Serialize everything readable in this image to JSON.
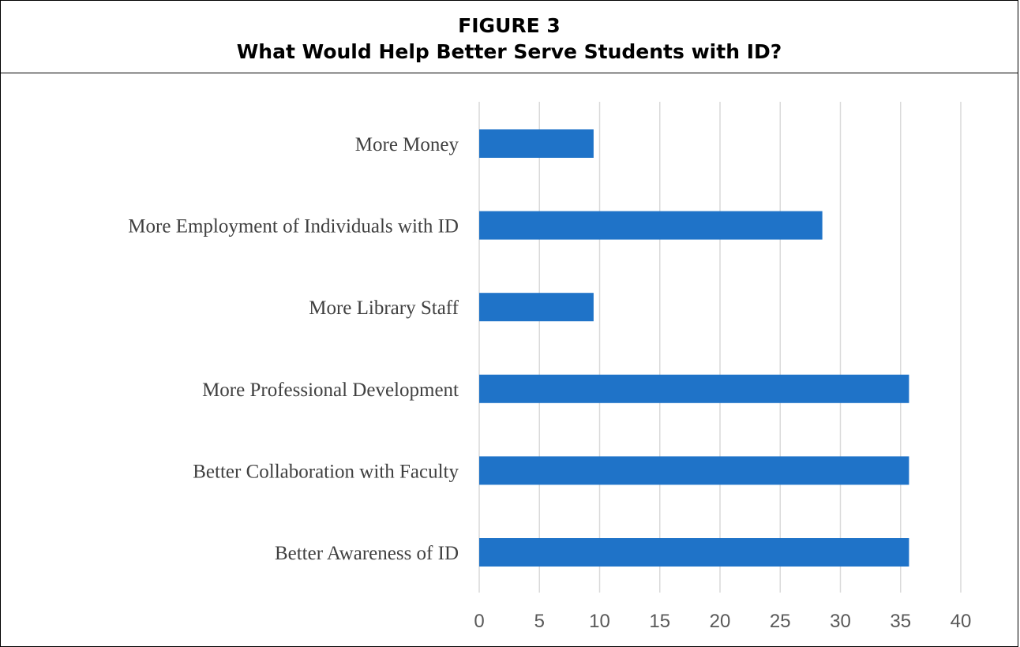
{
  "figure": {
    "number": "FIGURE 3",
    "title": "What Would Help Better Serve Students with ID?"
  },
  "chart_data": {
    "type": "bar",
    "orientation": "horizontal",
    "categories": [
      "More Money",
      "More Employment of Individuals with ID",
      "More Library Staff",
      "More Professional Development",
      "Better Collaboration with Faculty",
      "Better Awareness of ID"
    ],
    "values": [
      9.5,
      28.5,
      9.5,
      35.7,
      35.7,
      35.7
    ],
    "xlim": [
      0,
      40
    ],
    "xticks": [
      "0",
      "5",
      "10",
      "15",
      "20",
      "25",
      "30",
      "35",
      "40"
    ],
    "grid": true,
    "bar_color": "#1f73c8",
    "xlabel": "",
    "ylabel": ""
  }
}
